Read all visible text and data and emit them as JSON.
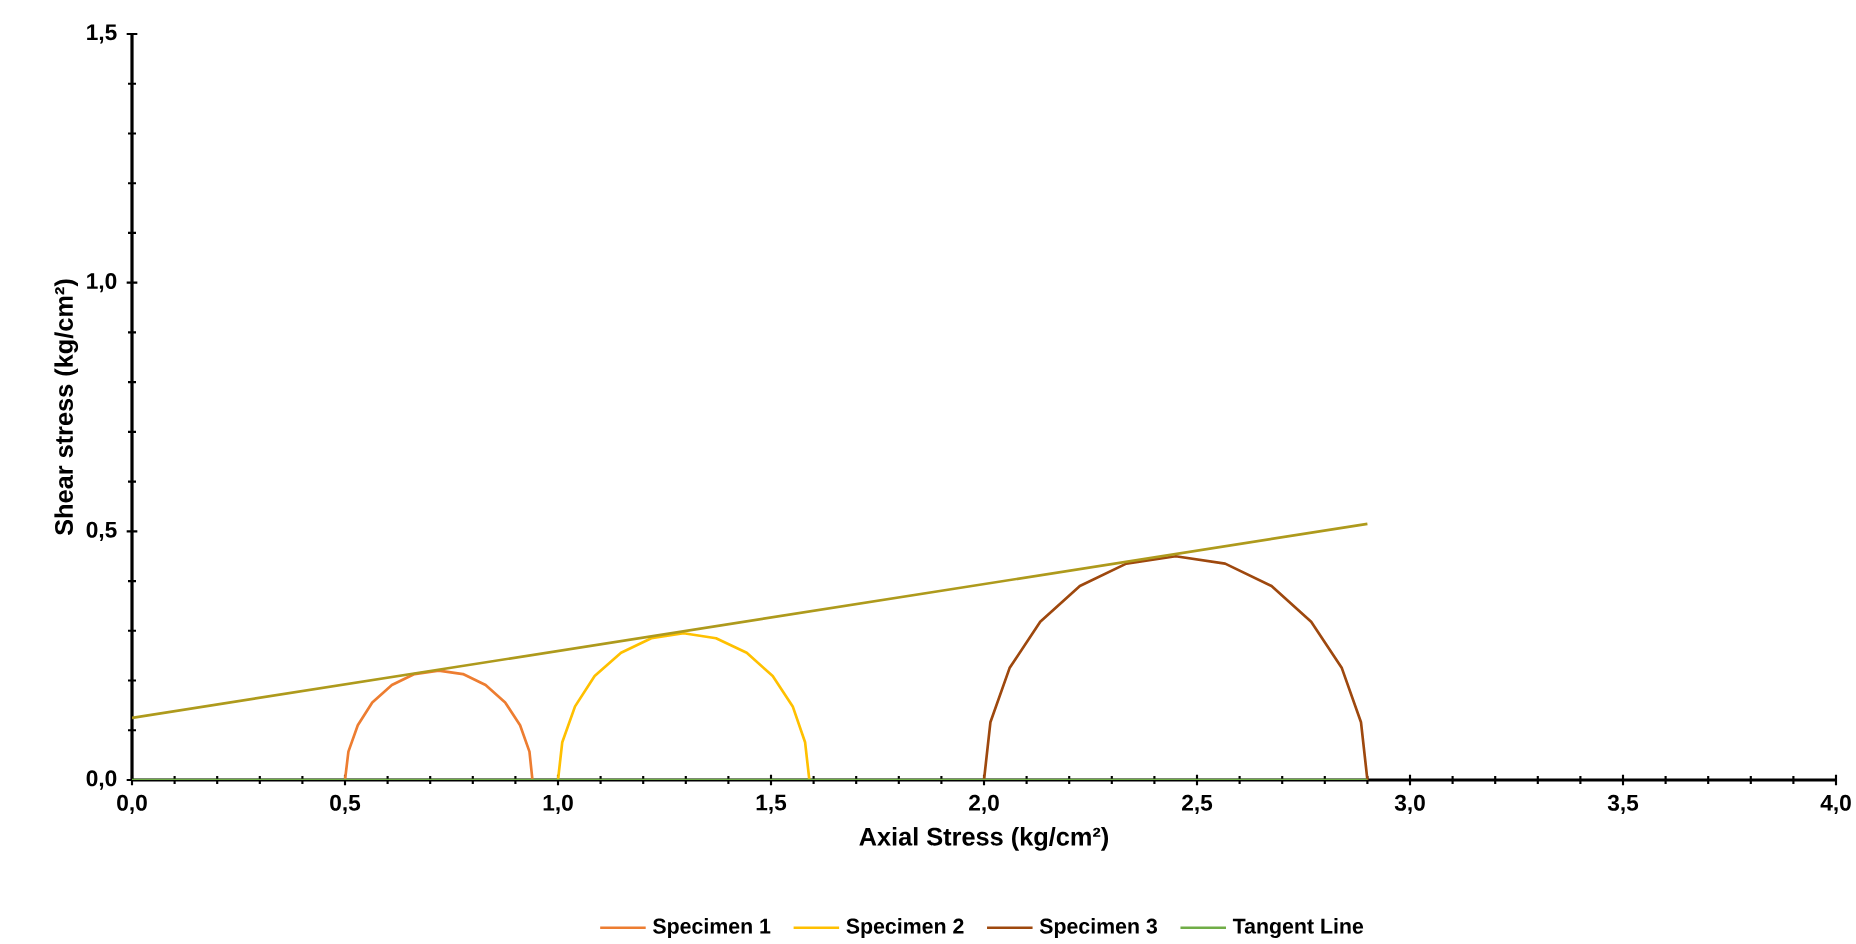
{
  "chart_data": {
    "type": "line",
    "xlabel": "Axial Stress (kg/cm²)",
    "ylabel": "Shear stress (kg/cm²)",
    "xlim": [
      0,
      4
    ],
    "ylim": [
      0,
      1.5
    ],
    "xticks": [
      {
        "value": 0,
        "label": "0,0"
      },
      {
        "value": 0.5,
        "label": "0,5"
      },
      {
        "value": 1,
        "label": "1,0"
      },
      {
        "value": 1.5,
        "label": "1,5"
      },
      {
        "value": 2,
        "label": "2,0"
      },
      {
        "value": 2.5,
        "label": "2,5"
      },
      {
        "value": 3,
        "label": "3,0"
      },
      {
        "value": 3.5,
        "label": "3,5"
      },
      {
        "value": 4,
        "label": "4,0"
      }
    ],
    "yticks": [
      {
        "value": 0,
        "label": "0,0"
      },
      {
        "value": 0.5,
        "label": "0,5"
      },
      {
        "value": 1,
        "label": "1,0"
      },
      {
        "value": 1.5,
        "label": "1,5"
      }
    ],
    "grid": false,
    "legend": "bottom",
    "marker": "none",
    "series": [
      {
        "name": "Specimen 1",
        "color": "#ed7d31",
        "x": [
          0.5,
          0.508,
          0.53,
          0.564,
          0.61,
          0.663,
          0.72,
          0.777,
          0.83,
          0.876,
          0.911,
          0.933,
          0.94
        ],
        "values": [
          0,
          0.057,
          0.11,
          0.156,
          0.191,
          0.213,
          0.22,
          0.213,
          0.191,
          0.156,
          0.11,
          0.057,
          0
        ]
      },
      {
        "name": "Specimen 2",
        "color": "#ffc000",
        "x": [
          1.0,
          1.01,
          1.04,
          1.086,
          1.148,
          1.219,
          1.295,
          1.371,
          1.443,
          1.504,
          1.551,
          1.58,
          1.59
        ],
        "values": [
          0,
          0.076,
          0.148,
          0.209,
          0.256,
          0.285,
          0.295,
          0.285,
          0.256,
          0.209,
          0.148,
          0.076,
          0
        ]
      },
      {
        "name": "Specimen 3",
        "color": "#9e480e",
        "x": [
          2.0,
          2.015,
          2.06,
          2.132,
          2.225,
          2.334,
          2.45,
          2.566,
          2.675,
          2.768,
          2.84,
          2.885,
          2.9
        ],
        "values": [
          0,
          0.116,
          0.225,
          0.318,
          0.39,
          0.435,
          0.45,
          0.435,
          0.39,
          0.318,
          0.225,
          0.116,
          0
        ]
      },
      {
        "name": "Tangent Line",
        "color": "#70ad47",
        "x": [
          0,
          2.9
        ],
        "values": [
          0,
          0
        ]
      },
      {
        "color": "#ae9a1c",
        "x": [
          0,
          2.9
        ],
        "values": [
          0.125,
          0.515
        ]
      }
    ]
  }
}
